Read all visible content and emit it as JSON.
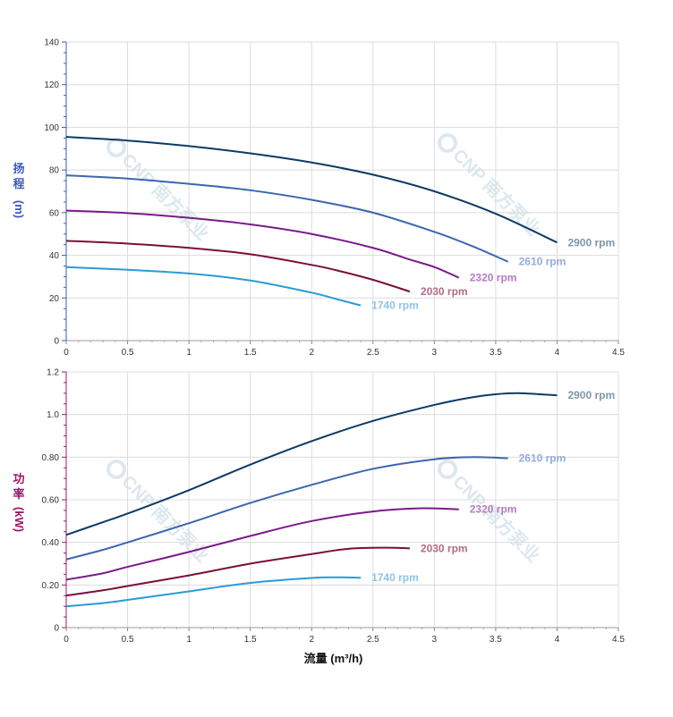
{
  "chart_data": [
    {
      "type": "line",
      "ylabel_chars": [
        "扬",
        "程",
        "(m)"
      ],
      "xlim": [
        0,
        4.5
      ],
      "ylim": [
        0,
        140
      ],
      "x_ticks": [
        "0",
        "0.5",
        "1",
        "1.5",
        "2",
        "2.5",
        "3",
        "3.5",
        "4",
        "4.5"
      ],
      "y_ticks": [
        "0",
        "20",
        "40",
        "60",
        "80",
        "100",
        "120",
        "140"
      ],
      "grid": true,
      "ylabel_color": "#3a5bbd",
      "series": [
        {
          "name": "2900 rpm",
          "color": "#0d3b66",
          "label_color": "#7e97a8",
          "x": [
            0,
            0.5,
            1,
            1.5,
            2,
            2.5,
            3,
            3.5,
            4
          ],
          "y": [
            95.5,
            93.8,
            91.2,
            87.8,
            83.5,
            77.8,
            70.0,
            59.5,
            46.0
          ]
        },
        {
          "name": "2610 rpm",
          "color": "#3d66b0",
          "label_color": "#93acd8",
          "x": [
            0,
            0.5,
            1,
            1.5,
            2,
            2.5,
            3,
            3.3,
            3.6
          ],
          "y": [
            77.5,
            76.0,
            73.5,
            70.5,
            66.0,
            60.0,
            51.0,
            44.5,
            37.0
          ]
        },
        {
          "name": "2320 rpm",
          "color": "#7a1a8a",
          "label_color": "#b57cc0",
          "x": [
            0,
            0.5,
            1,
            1.5,
            2,
            2.5,
            2.8,
            3.0,
            3.2
          ],
          "y": [
            61.0,
            59.8,
            57.6,
            54.5,
            50.0,
            43.5,
            38.0,
            34.5,
            29.5
          ]
        },
        {
          "name": "2030 rpm",
          "color": "#7a0f3c",
          "label_color": "#b56a8a",
          "x": [
            0,
            0.5,
            1,
            1.5,
            2,
            2.2,
            2.5,
            2.8
          ],
          "y": [
            46.8,
            45.5,
            43.5,
            40.5,
            35.5,
            33.0,
            28.5,
            23.0
          ]
        },
        {
          "name": "1740 rpm",
          "color": "#2c9ad6",
          "label_color": "#8ec3e6",
          "x": [
            0,
            0.5,
            1,
            1.5,
            2,
            2.2,
            2.4
          ],
          "y": [
            34.5,
            33.2,
            31.5,
            28.2,
            22.5,
            19.5,
            16.5
          ]
        }
      ]
    },
    {
      "type": "line",
      "ylabel_chars": [
        "功",
        "率",
        "(kW)"
      ],
      "xlabel": "流量 (m³/h)",
      "xlim": [
        0,
        4.5
      ],
      "ylim": [
        0,
        1.2
      ],
      "x_ticks": [
        "0",
        "0.5",
        "1",
        "1.5",
        "2",
        "2.5",
        "3",
        "3.5",
        "4",
        "4.5"
      ],
      "y_ticks": [
        "0",
        "0.20",
        "0.40",
        "0.60",
        "0.80",
        "1.0",
        "1.2"
      ],
      "grid": true,
      "ylabel_color": "#a0156a",
      "series": [
        {
          "name": "2900 rpm",
          "color": "#0d3b66",
          "label_color": "#7e97a8",
          "x": [
            0,
            0.3,
            0.5,
            1,
            1.5,
            2,
            2.5,
            3,
            3.3,
            3.5,
            3.7,
            4.0
          ],
          "y": [
            0.435,
            0.495,
            0.535,
            0.645,
            0.765,
            0.875,
            0.97,
            1.045,
            1.08,
            1.095,
            1.1,
            1.09
          ]
        },
        {
          "name": "2610 rpm",
          "color": "#3d66b0",
          "label_color": "#93acd8",
          "x": [
            0,
            0.3,
            0.5,
            1,
            1.5,
            2,
            2.5,
            3,
            3.3,
            3.6
          ],
          "y": [
            0.32,
            0.365,
            0.4,
            0.49,
            0.585,
            0.67,
            0.745,
            0.79,
            0.8,
            0.795
          ]
        },
        {
          "name": "2320 rpm",
          "color": "#7a1a8a",
          "label_color": "#b57cc0",
          "x": [
            0,
            0.3,
            0.5,
            1,
            1.5,
            2,
            2.5,
            2.9,
            3.2
          ],
          "y": [
            0.225,
            0.255,
            0.285,
            0.355,
            0.43,
            0.5,
            0.545,
            0.56,
            0.555
          ]
        },
        {
          "name": "2030 rpm",
          "color": "#7a0f3c",
          "label_color": "#b56a8a",
          "x": [
            0,
            0.3,
            0.5,
            1,
            1.5,
            2,
            2.3,
            2.6,
            2.8
          ],
          "y": [
            0.15,
            0.175,
            0.195,
            0.245,
            0.3,
            0.345,
            0.37,
            0.375,
            0.372
          ]
        },
        {
          "name": "1740 rpm",
          "color": "#2c9ad6",
          "label_color": "#8ec3e6",
          "x": [
            0,
            0.3,
            0.5,
            1,
            1.5,
            2,
            2.2,
            2.4
          ],
          "y": [
            0.1,
            0.115,
            0.13,
            0.17,
            0.21,
            0.233,
            0.236,
            0.234
          ]
        }
      ]
    }
  ]
}
